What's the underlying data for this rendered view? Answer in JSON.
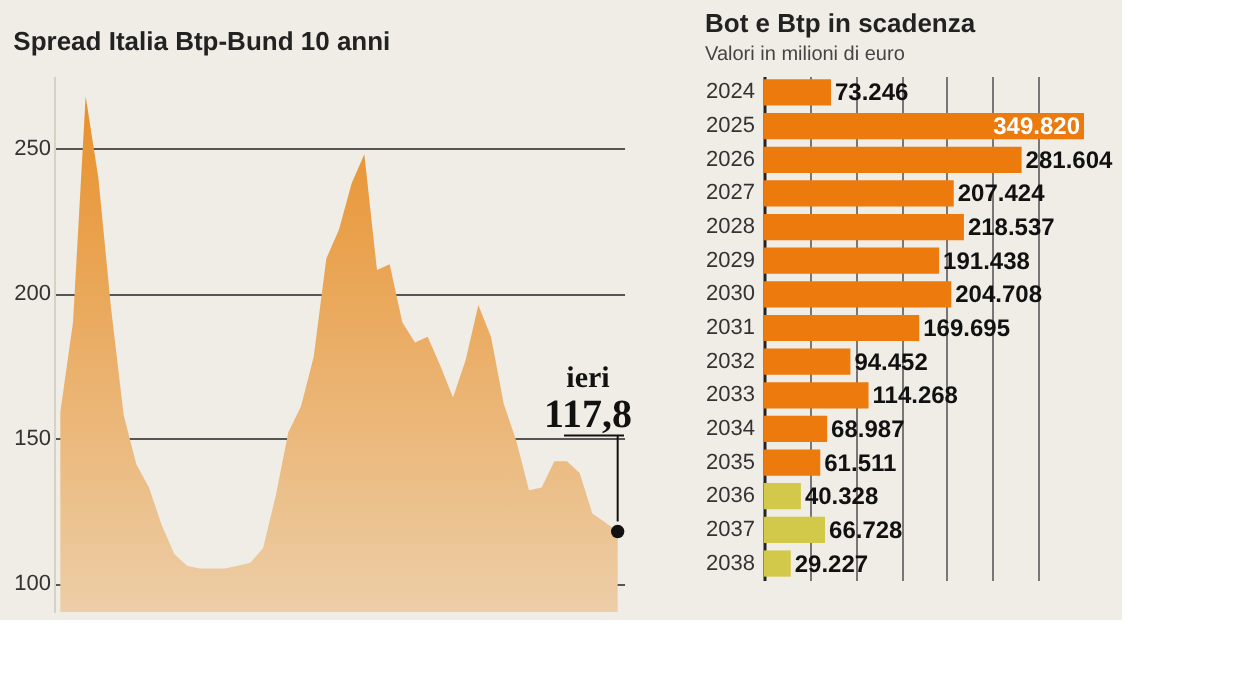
{
  "chart_data": [
    {
      "type": "area",
      "title": "Spread Italia Btp-Bund 10 anni",
      "categories": [
        null,
        null,
        null,
        null,
        null,
        null,
        null,
        null,
        null,
        null,
        null,
        null,
        null,
        null,
        null,
        null,
        null,
        null,
        null,
        null,
        null,
        null,
        null,
        null,
        null,
        null,
        null,
        null,
        null,
        null,
        null,
        null,
        null,
        null,
        null,
        null,
        null,
        null,
        null,
        null,
        null,
        null,
        null,
        null,
        null
      ],
      "series": [
        {
          "color": "#e8902a",
          "values": [
            159,
            190,
            268,
            240,
            195,
            158,
            141,
            133,
            120,
            110,
            106,
            105,
            105,
            105,
            106,
            107,
            112,
            130,
            152,
            161,
            178,
            212,
            222,
            238,
            248,
            208,
            210,
            190,
            183,
            185,
            175,
            164,
            177,
            196,
            185,
            162,
            149,
            132,
            133,
            142,
            142,
            138,
            124,
            121,
            117.8
          ]
        },
        {
          "type": "scatter",
          "color": "#111111",
          "values": [
            null,
            null,
            null,
            null,
            null,
            null,
            null,
            null,
            null,
            null,
            null,
            null,
            null,
            null,
            null,
            null,
            null,
            null,
            null,
            null,
            null,
            null,
            null,
            null,
            null,
            null,
            null,
            null,
            null,
            null,
            null,
            null,
            null,
            null,
            null,
            null,
            null,
            null,
            null,
            null,
            null,
            null,
            null,
            null,
            117.8
          ]
        }
      ],
      "ylim": [
        90,
        275
      ],
      "yticks": [
        100,
        150,
        200,
        250
      ],
      "grid": "y",
      "tick_labels": "y",
      "annotations": [
        "ieri",
        "117,8"
      ]
    },
    {
      "type": "bar",
      "orientation": "horizontal",
      "title": "Bot e Btp in scadenza",
      "subtitle": "Valori in milioni di euro",
      "categories": [
        "2024",
        "2025",
        "2026",
        "2027",
        "2028",
        "2029",
        "2030",
        "2031",
        "2032",
        "2033",
        "2034",
        "2035",
        "2036",
        "2037",
        "2038"
      ],
      "values": [
        73246,
        349820,
        281604,
        207424,
        218537,
        191438,
        204708,
        169695,
        94452,
        114268,
        68987,
        61511,
        40328,
        66728,
        29227
      ],
      "colors": [
        "#ec7a0c",
        "#ec7a0c",
        "#ec7a0c",
        "#ec7a0c",
        "#ec7a0c",
        "#ec7a0c",
        "#ec7a0c",
        "#ec7a0c",
        "#ec7a0c",
        "#ec7a0c",
        "#ec7a0c",
        "#ec7a0c",
        "#d2c94a",
        "#d2c94a",
        "#d2c94a"
      ],
      "value_labels": [
        "73.246",
        "349.820",
        "281.604",
        "207.424",
        "218.537",
        "191.438",
        "204.708",
        "169.695",
        "94.452",
        "114.268",
        "68.987",
        "61.511",
        "40.328",
        "66.728",
        "29.227"
      ],
      "grid": "x",
      "tick_labels": "y"
    }
  ]
}
